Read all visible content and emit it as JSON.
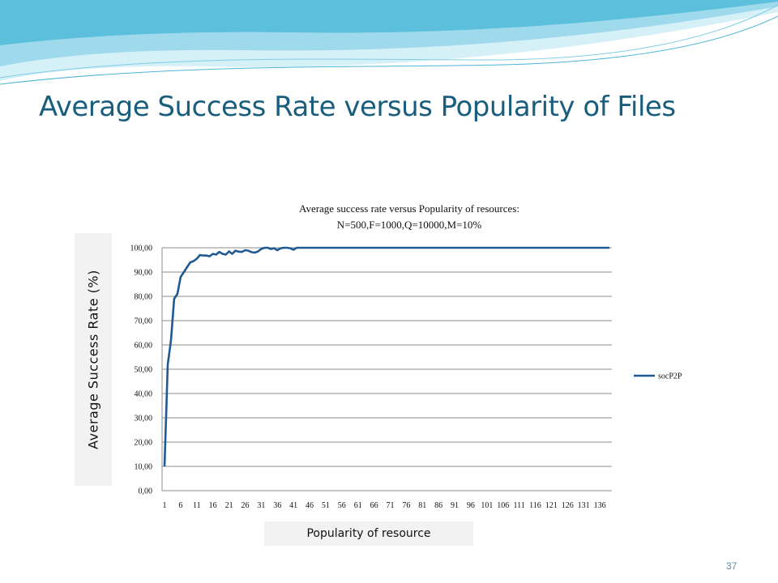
{
  "slide": {
    "title": "Average Success Rate versus Popularity of Files",
    "page_number": "37"
  },
  "colors": {
    "title": "#1a5e7e",
    "series": "#1f5a92",
    "banner_light": "#bfe7f3",
    "banner_mid": "#7fcde5",
    "banner_dark": "#4bb6d6"
  },
  "chart_data": {
    "type": "line",
    "title_lines": [
      "Average success rate versus Popularity of resources:",
      "N=500,F=1000,Q=10000,M=10%"
    ],
    "xlabel": "Popularity of resource",
    "ylabel": "Average Success Rate (%)",
    "ylim": [
      0,
      100
    ],
    "y_ticks": [
      "0,00",
      "10,00",
      "20,00",
      "30,00",
      "40,00",
      "50,00",
      "60,00",
      "70,00",
      "80,00",
      "90,00",
      "100,00"
    ],
    "x_tick_labels": [
      "1",
      "6",
      "11",
      "16",
      "21",
      "26",
      "31",
      "36",
      "41",
      "46",
      "51",
      "56",
      "61",
      "66",
      "71",
      "76",
      "81",
      "86",
      "91",
      "96",
      "101",
      "106",
      "111",
      "116",
      "121",
      "126",
      "131",
      "136"
    ],
    "grid": "horizontal",
    "legend_position": "right",
    "series": [
      {
        "name": "socP2P",
        "x": [
          1,
          2,
          3,
          4,
          5,
          6,
          7,
          8,
          9,
          10,
          11,
          12,
          13,
          14,
          15,
          16,
          17,
          18,
          19,
          20,
          21,
          22,
          23,
          24,
          25,
          26,
          27,
          28,
          29,
          30,
          31,
          32,
          33,
          34,
          35,
          36,
          37,
          38,
          39,
          40,
          41,
          42,
          43,
          44,
          45,
          46,
          139
        ],
        "y": [
          10,
          52,
          62,
          79,
          81,
          88,
          90,
          92,
          94,
          94.5,
          95.5,
          97,
          96.8,
          96.8,
          96.5,
          97.5,
          97.2,
          98.3,
          97.5,
          97.2,
          98.5,
          97.5,
          98.8,
          98.4,
          98.3,
          99,
          98.8,
          98.2,
          98,
          98.5,
          99.5,
          100,
          100,
          99.5,
          99.8,
          99,
          99.8,
          100,
          100,
          99.8,
          99.2,
          100,
          100,
          100,
          100,
          100,
          100
        ]
      }
    ]
  }
}
